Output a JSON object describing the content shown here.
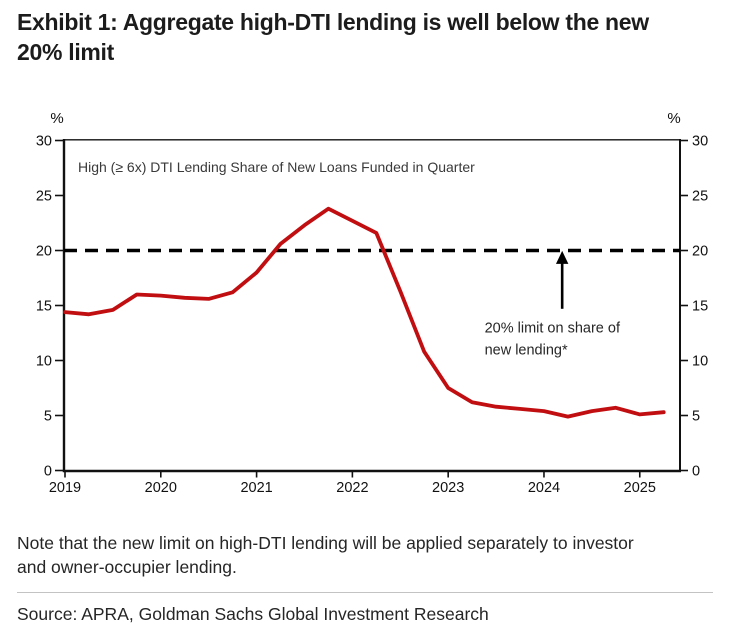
{
  "title_lines": [
    "Exhibit 1: Aggregate high-DTI lending is well below the new",
    "20% limit"
  ],
  "note_lines": [
    "Note that the new limit on high-DTI lending will be applied separately to investor",
    "and owner-occupier lending."
  ],
  "source": "Source: APRA, Goldman Sachs Global Investment Research",
  "chart_data": {
    "type": "line",
    "inner_title": "High (≥ 6x) DTI Lending Share of New Loans Funded in Quarter",
    "unit_label_left": "%",
    "unit_label_right": "%",
    "line_color": "#c10e11",
    "axis_color": "#111111",
    "x_ticks": [
      2019,
      2020,
      2021,
      2022,
      2023,
      2024,
      2025
    ],
    "y_ticks": [
      0,
      5,
      10,
      15,
      20,
      25,
      30
    ],
    "xlim": [
      2019,
      2025.42
    ],
    "ylim": [
      0,
      30
    ],
    "grid": "off",
    "legend": "none",
    "series": [
      {
        "name": "High (≥ 6x) DTI lending share of new loans funded in quarter",
        "x": [
          2019.0,
          2019.25,
          2019.5,
          2019.75,
          2020.0,
          2020.25,
          2020.5,
          2020.75,
          2021.0,
          2021.25,
          2021.5,
          2021.75,
          2022.0,
          2022.25,
          2022.5,
          2022.75,
          2023.0,
          2023.25,
          2023.5,
          2023.75,
          2024.0,
          2024.25,
          2024.5,
          2024.75,
          2025.0,
          2025.25
        ],
        "values": [
          14.4,
          14.2,
          14.6,
          16.0,
          15.9,
          15.7,
          15.6,
          16.2,
          18.0,
          20.6,
          22.3,
          23.8,
          22.7,
          21.6,
          16.3,
          10.8,
          7.5,
          6.2,
          5.8,
          5.6,
          5.4,
          4.9,
          5.4,
          5.7,
          5.1,
          5.3
        ]
      }
    ],
    "limit_line": {
      "value": 20,
      "style": "dashed",
      "color": "#000000",
      "annotation_lines": [
        "20% limit on share of",
        "new lending*"
      ],
      "annotation_x": 2023.38,
      "annotation_y": 12.55,
      "annotation_line_height": 22,
      "arrow_x": 2024.19,
      "arrow_y_from": 14.7,
      "arrow_y_to": 19.6
    }
  }
}
